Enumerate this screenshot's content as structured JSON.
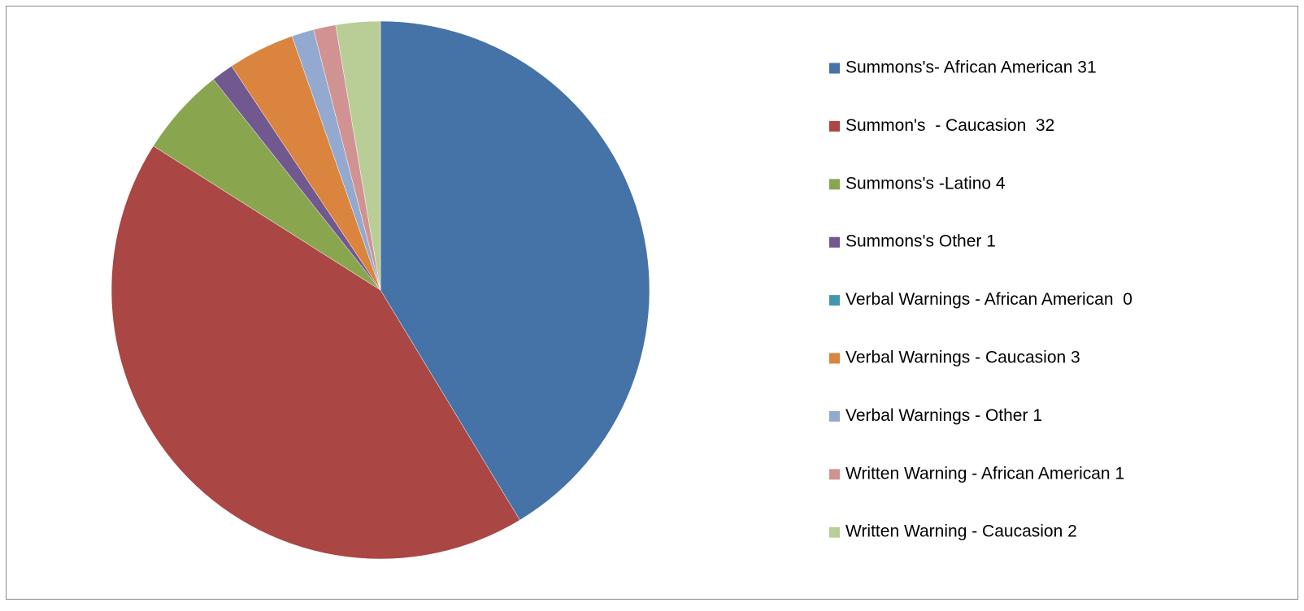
{
  "chart_data": {
    "type": "pie",
    "categories": [
      "Summons's- African American 31",
      "Summon's  - Caucasion  32",
      "Summons's -Latino 4",
      "Summons's Other 1",
      "Verbal Warnings - African American  0",
      "Verbal Warnings - Caucasion 3",
      "Verbal Warnings - Other 1",
      "Written Warning - African American 1",
      "Written Warning - Caucasion 2"
    ],
    "values": [
      31,
      32,
      4,
      1,
      0,
      3,
      1,
      1,
      2
    ],
    "colors": [
      "#4572a7",
      "#aa4643",
      "#89a54e",
      "#71588f",
      "#4198af",
      "#db843d",
      "#93a9cf",
      "#d19392",
      "#b9cd96"
    ],
    "legend": "right"
  }
}
